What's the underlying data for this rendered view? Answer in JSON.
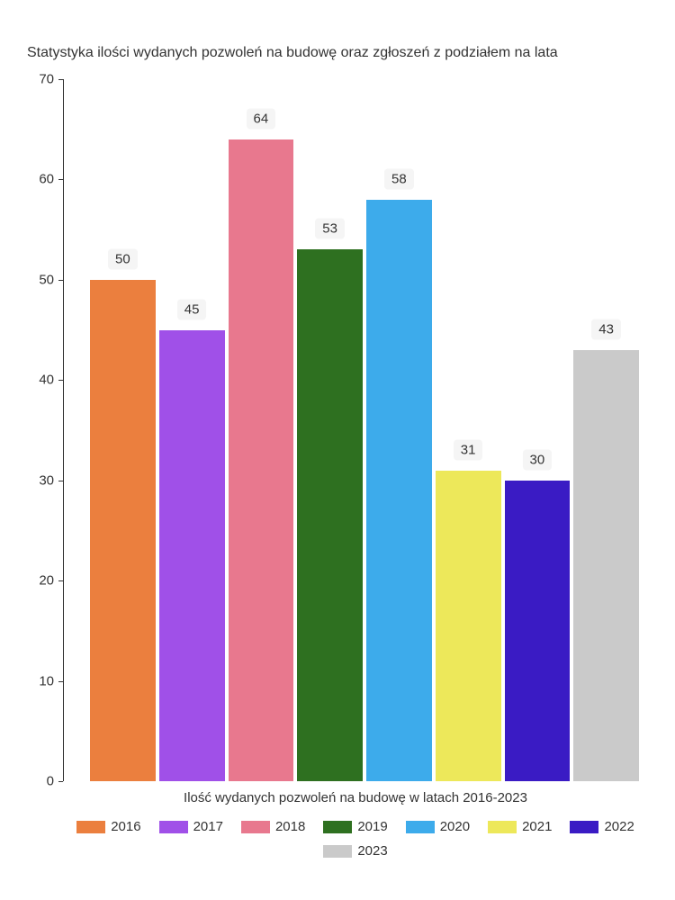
{
  "chart": {
    "type": "bar",
    "title": "Statystyka ilości wydanych pozwoleń na budowę oraz zgłoszeń z podziałem na lata",
    "x_axis_label": "Ilość wydanych pozwoleń na budowę w latach 2016-2023",
    "y_axis": {
      "min": 0,
      "max": 70,
      "ticks": [
        0,
        10,
        20,
        30,
        40,
        50,
        60,
        70
      ]
    },
    "bars": [
      {
        "year": "2016",
        "value": 50,
        "color": "#eb7f3e"
      },
      {
        "year": "2017",
        "value": 45,
        "color": "#a050e8"
      },
      {
        "year": "2018",
        "value": 64,
        "color": "#e8788e"
      },
      {
        "year": "2019",
        "value": 53,
        "color": "#2e7020"
      },
      {
        "year": "2020",
        "value": 58,
        "color": "#3dabeb"
      },
      {
        "year": "2021",
        "value": 31,
        "color": "#ede85a"
      },
      {
        "year": "2022",
        "value": 30,
        "color": "#3a1bc4"
      },
      {
        "year": "2023",
        "value": 43,
        "color": "#cacaca"
      }
    ],
    "background_color": "#ffffff",
    "label_bg_color": "#f5f5f5",
    "text_color": "#333333",
    "title_fontsize": 16,
    "tick_fontsize": 15,
    "label_fontsize": 15
  }
}
